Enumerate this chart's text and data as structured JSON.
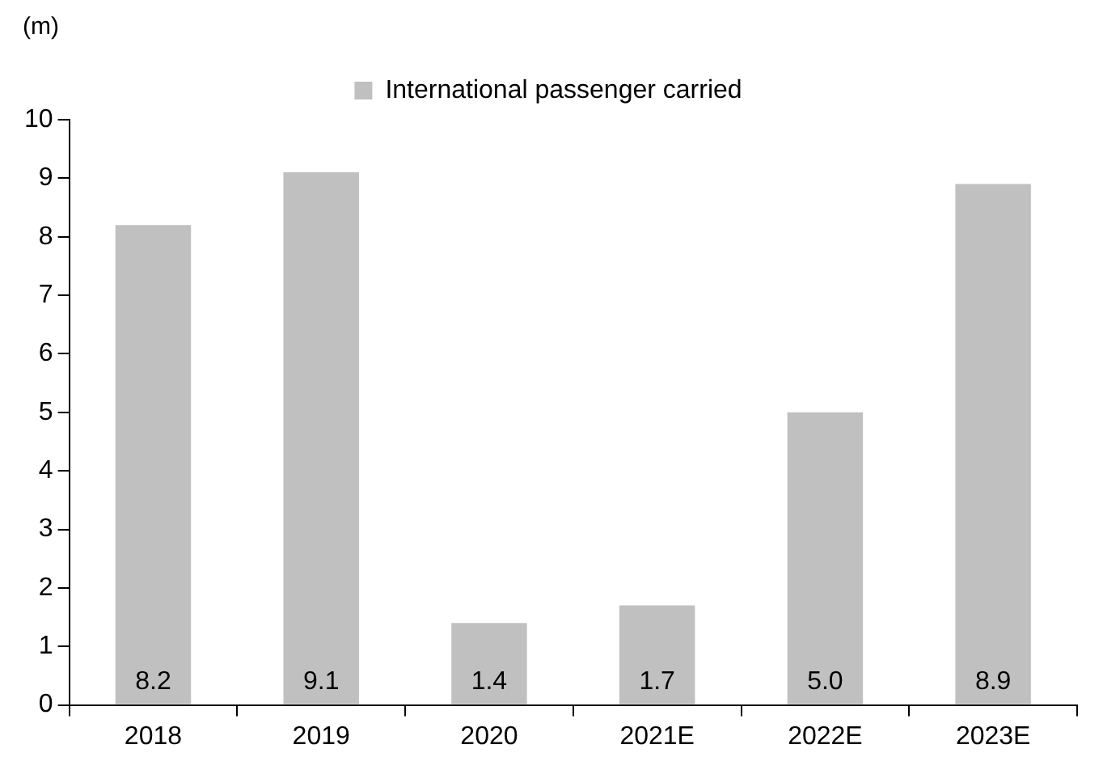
{
  "chart_data": {
    "type": "bar",
    "ylabel": "(m)",
    "categories": [
      "2018",
      "2019",
      "2020",
      "2021E",
      "2022E",
      "2023E"
    ],
    "series": [
      {
        "name": "International passenger carried",
        "color": "#c0c0c0",
        "values": [
          8.2,
          9.1,
          1.4,
          1.7,
          5.0,
          8.9
        ],
        "value_labels": [
          "8.2",
          "9.1",
          "1.4",
          "1.7",
          "5.0",
          "8.9"
        ]
      }
    ],
    "ylim": [
      0,
      10
    ],
    "yticks": [
      0,
      1,
      2,
      3,
      4,
      5,
      6,
      7,
      8,
      9,
      10
    ],
    "legend": "top"
  }
}
